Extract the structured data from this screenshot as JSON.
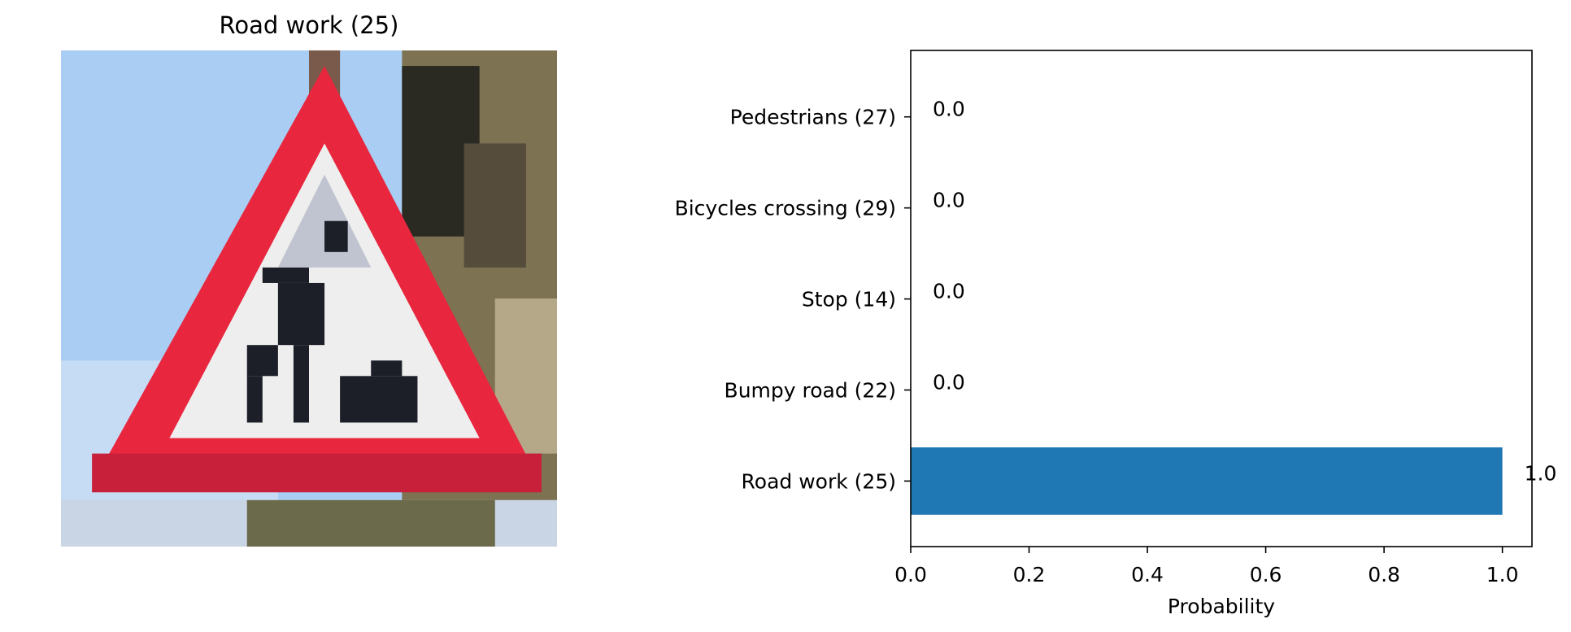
{
  "image_panel": {
    "title": "Road work (25)",
    "description_icon": "road-work-sign-thumbnail"
  },
  "colors": {
    "bar": "#1f77b4",
    "sky": "#a9cdf3",
    "sign_red": "#e8263e",
    "sign_white": "#eeeeee",
    "dark": "#1c1f28",
    "foliage": "#7d7352"
  },
  "chart_data": {
    "type": "bar",
    "orientation": "horizontal",
    "categories": [
      "Road work (25)",
      "Bumpy road (22)",
      "Stop (14)",
      "Bicycles crossing (29)",
      "Pedestrians (27)"
    ],
    "values": [
      1.0,
      0.0,
      0.0,
      0.0,
      0.0
    ],
    "data_labels": [
      "1.0",
      "0.0",
      "0.0",
      "0.0",
      "0.0"
    ],
    "title": "",
    "xlabel": "Probability",
    "ylabel": "",
    "xlim": [
      0.0,
      1.05
    ],
    "xticks": [
      0.0,
      0.2,
      0.4,
      0.6,
      0.8,
      1.0
    ],
    "xtick_labels": [
      "0.0",
      "0.2",
      "0.4",
      "0.6",
      "0.8",
      "1.0"
    ],
    "grid": false,
    "legend": "none"
  }
}
